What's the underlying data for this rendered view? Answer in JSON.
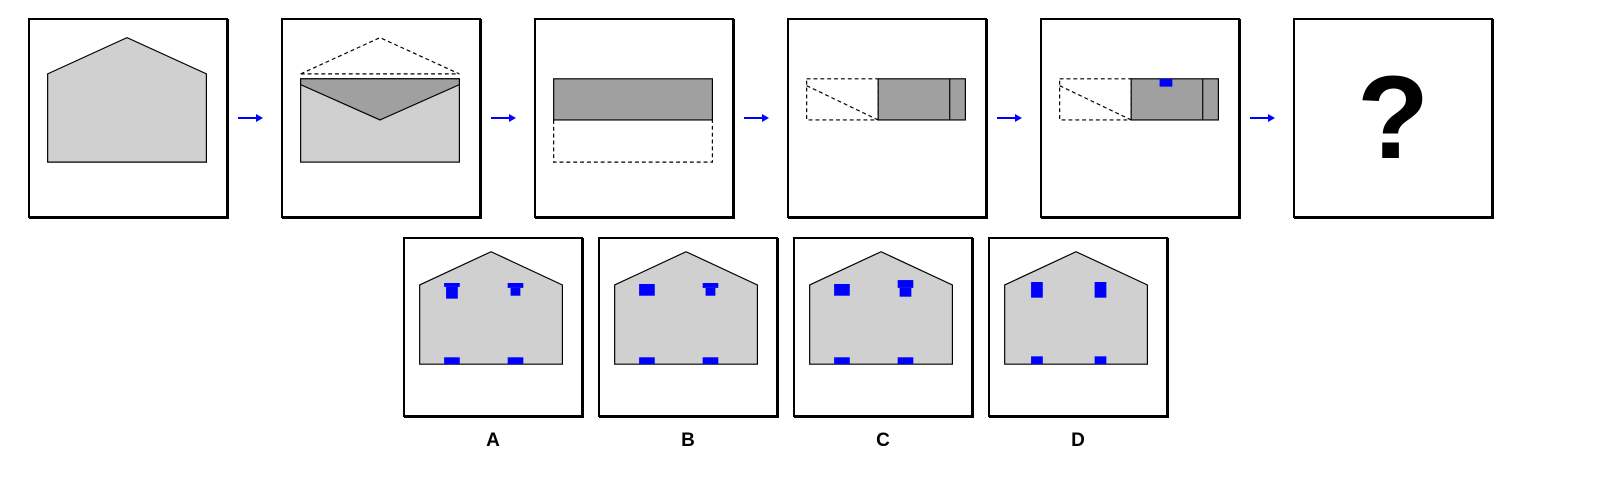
{
  "puzzle": {
    "question_symbol": "?",
    "options": [
      {
        "label": "A"
      },
      {
        "label": "B"
      },
      {
        "label": "C"
      },
      {
        "label": "D"
      }
    ]
  },
  "colors": {
    "paper_light": "#d0d0d0",
    "paper_dark": "#a0a0a0",
    "hole": "#0000ff",
    "arrow": "#0000ff",
    "outline": "#000000"
  },
  "icons": {
    "arrow": "right-arrow-icon",
    "question": "question-mark"
  }
}
